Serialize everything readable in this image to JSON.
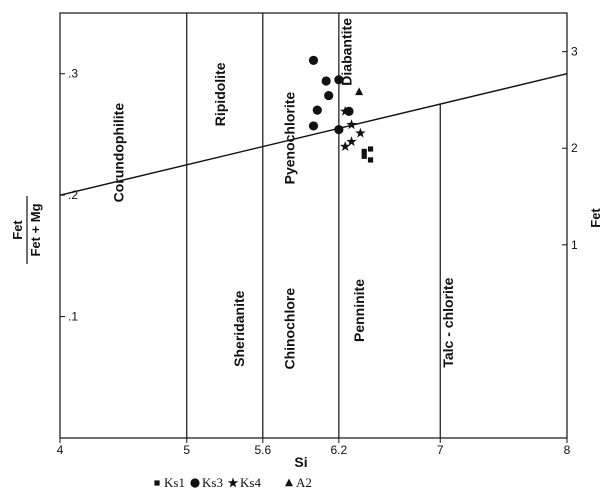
{
  "chart_data": {
    "type": "scatter",
    "title": "",
    "xlabel": "Si",
    "ylabel_left_numerator": "Fet",
    "ylabel_left_denominator": "Fet + Mg",
    "ylabel_right": "Fet",
    "xlim": [
      4,
      8
    ],
    "x_ticks": [
      {
        "value": 4,
        "label": "4"
      },
      {
        "value": 5,
        "label": "5"
      },
      {
        "value": 5.6,
        "label": "5.6"
      },
      {
        "value": 6.2,
        "label": "6.2"
      },
      {
        "value": 7,
        "label": "7"
      },
      {
        "value": 8,
        "label": "8"
      }
    ],
    "ylim_left": [
      0,
      0.35
    ],
    "y_ticks_left": [
      {
        "value": 0.1,
        "label": ".1"
      },
      {
        "value": 0.2,
        "label": ".2"
      },
      {
        "value": 0.3,
        "label": ".3"
      }
    ],
    "ylim_right": [
      -1,
      3.4
    ],
    "y_ticks_right": [
      {
        "value": 1,
        "label": "1"
      },
      {
        "value": 2,
        "label": "2"
      },
      {
        "value": 3,
        "label": "3"
      }
    ],
    "boundary_line": {
      "x": [
        4,
        8
      ],
      "fet_ratio": [
        0.2,
        0.3
      ]
    },
    "vertical_boundaries": [
      {
        "x": 5.0,
        "y_bottom": 0,
        "y_top": 0.35
      },
      {
        "x": 5.6,
        "y_bottom": 0,
        "y_top": 0.35
      },
      {
        "x": 6.2,
        "y_bottom": 0,
        "y_top": 0.35
      },
      {
        "x": 7.0,
        "y_bottom": 0,
        "y_top": 0.275
      }
    ],
    "fields": [
      {
        "name": "Corundophilite",
        "x": 4.5,
        "y": 0.235
      },
      {
        "name": "Ripidolite",
        "x": 5.3,
        "y": 0.283
      },
      {
        "name": "Pyenochlorite",
        "x": 5.85,
        "y": 0.247
      },
      {
        "name": "Diabantite",
        "x": 6.3,
        "y": 0.318
      },
      {
        "name": "Sheridanite",
        "x": 5.45,
        "y": 0.09
      },
      {
        "name": "Chinochlore",
        "x": 5.85,
        "y": 0.09
      },
      {
        "name": "Penninite",
        "x": 6.4,
        "y": 0.105
      },
      {
        "name": "Talc - chlorite",
        "x": 7.1,
        "y": 0.095
      }
    ],
    "series": [
      {
        "name": "Ks1",
        "marker": "square",
        "points": [
          [
            6.4,
            0.236
          ],
          [
            6.45,
            0.238
          ],
          [
            6.4,
            0.232
          ],
          [
            6.45,
            0.229
          ]
        ]
      },
      {
        "name": "Ks3",
        "marker": "circle",
        "points": [
          [
            6.0,
            0.311
          ],
          [
            6.1,
            0.294
          ],
          [
            6.2,
            0.295
          ],
          [
            6.12,
            0.282
          ],
          [
            6.03,
            0.27
          ],
          [
            6.28,
            0.269
          ],
          [
            6.0,
            0.257
          ],
          [
            6.2,
            0.254
          ]
        ]
      },
      {
        "name": "Ks4",
        "marker": "star",
        "points": [
          [
            6.3,
            0.258
          ],
          [
            6.25,
            0.269
          ],
          [
            6.37,
            0.251
          ],
          [
            6.3,
            0.244
          ],
          [
            6.25,
            0.24
          ]
        ]
      },
      {
        "name": "A2",
        "marker": "triangle",
        "points": [
          [
            6.36,
            0.285
          ]
        ]
      }
    ]
  }
}
